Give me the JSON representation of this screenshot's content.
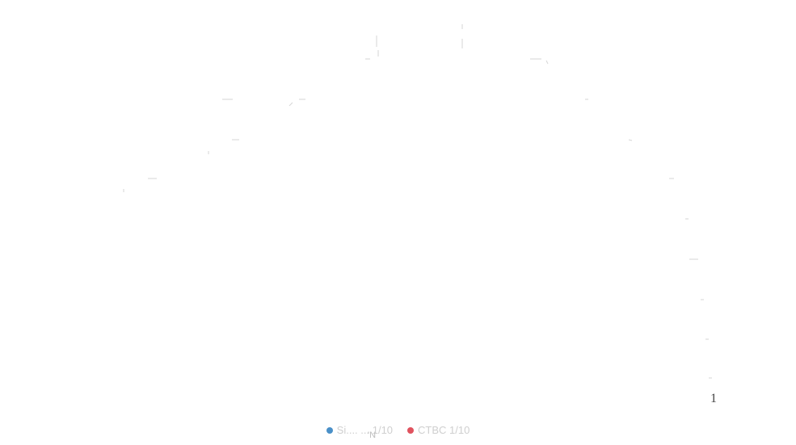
{
  "chart_data": {
    "type": "line",
    "title": "",
    "xlabel": "'N",
    "ylabel": "",
    "grid": false,
    "legend_position": "bottom-center",
    "series": [
      {
        "name": "Si.... ... 1/10",
        "color": "#4a90c8"
      },
      {
        "name": "CTBC 1/10",
        "color": "#e0525e"
      }
    ],
    "tick_labels": [
      "1"
    ],
    "colors": {
      "tick": "#d6d6d6",
      "label": "#444444",
      "legend_text": "#cfcfcf"
    }
  }
}
